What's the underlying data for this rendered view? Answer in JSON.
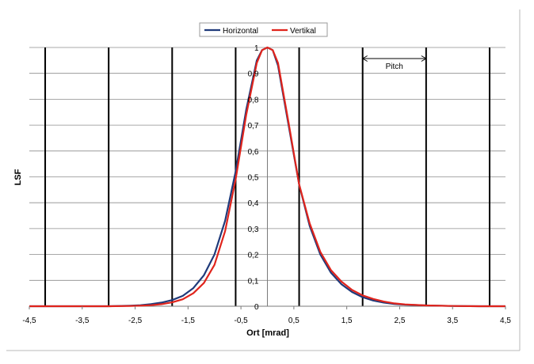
{
  "chart_data": {
    "type": "line",
    "title": "",
    "xlabel": "Ort [mrad]",
    "ylabel": "LSF",
    "xlim": [
      -4.5,
      4.5
    ],
    "ylim": [
      0,
      1
    ],
    "x_ticks": [
      -4.5,
      -3.5,
      -2.5,
      -1.5,
      -0.5,
      0.5,
      1.5,
      2.5,
      3.5,
      4.5
    ],
    "x_tick_labels": [
      "-4,5",
      "-3,5",
      "-2,5",
      "-1,5",
      "-0,5",
      "0,5",
      "1,5",
      "2,5",
      "3,5",
      "4,5"
    ],
    "y_ticks": [
      0,
      0.1,
      0.2,
      0.3,
      0.4,
      0.5,
      0.6,
      0.7,
      0.8,
      0.9,
      1
    ],
    "y_tick_labels": [
      "0",
      "0,1",
      "0,2",
      "0,3",
      "0,4",
      "0,5",
      "0,6",
      "0,7",
      "0,8",
      "0,9",
      "1"
    ],
    "grid": "horizontal",
    "legend_position": "top-center",
    "series": [
      {
        "name": "Horizontal",
        "color": "#1f3a7a",
        "x": [
          -4.5,
          -4.0,
          -3.5,
          -3.0,
          -2.6,
          -2.4,
          -2.2,
          -2.0,
          -1.8,
          -1.6,
          -1.4,
          -1.2,
          -1.0,
          -0.8,
          -0.6,
          -0.4,
          -0.2,
          -0.1,
          0.0,
          0.1,
          0.2,
          0.4,
          0.6,
          0.8,
          1.0,
          1.2,
          1.4,
          1.6,
          1.8,
          2.0,
          2.2,
          2.4,
          2.6,
          3.0,
          3.5,
          4.0,
          4.5
        ],
        "y": [
          0,
          0,
          0,
          0,
          0.002,
          0.004,
          0.008,
          0.014,
          0.024,
          0.04,
          0.07,
          0.12,
          0.2,
          0.33,
          0.52,
          0.76,
          0.95,
          0.99,
          1,
          0.99,
          0.93,
          0.7,
          0.47,
          0.31,
          0.2,
          0.13,
          0.085,
          0.055,
          0.035,
          0.022,
          0.014,
          0.009,
          0.006,
          0.003,
          0.001,
          0,
          0
        ]
      },
      {
        "name": "Vertikal",
        "color": "#e0241c",
        "x": [
          -4.5,
          -4.0,
          -3.5,
          -3.0,
          -2.6,
          -2.4,
          -2.2,
          -2.0,
          -1.8,
          -1.6,
          -1.4,
          -1.2,
          -1.0,
          -0.8,
          -0.6,
          -0.4,
          -0.2,
          -0.1,
          0.0,
          0.1,
          0.2,
          0.4,
          0.6,
          0.8,
          1.0,
          1.2,
          1.4,
          1.6,
          1.8,
          2.0,
          2.2,
          2.4,
          2.6,
          3.0,
          3.5,
          4.0,
          4.5
        ],
        "y": [
          0,
          0,
          0,
          0,
          0.001,
          0.002,
          0.004,
          0.008,
          0.015,
          0.027,
          0.05,
          0.09,
          0.16,
          0.29,
          0.49,
          0.74,
          0.94,
          0.99,
          1,
          0.99,
          0.94,
          0.71,
          0.47,
          0.32,
          0.21,
          0.14,
          0.095,
          0.063,
          0.042,
          0.028,
          0.018,
          0.011,
          0.007,
          0.003,
          0.001,
          0,
          0
        ]
      }
    ],
    "vertical_lines": [
      -4.2,
      -3.0,
      -1.8,
      -0.6,
      0.6,
      1.8,
      3.0,
      4.2
    ],
    "annotations": [
      {
        "text": "Pitch",
        "from_x": 1.8,
        "to_x": 3.0,
        "y": 0.95
      }
    ]
  }
}
